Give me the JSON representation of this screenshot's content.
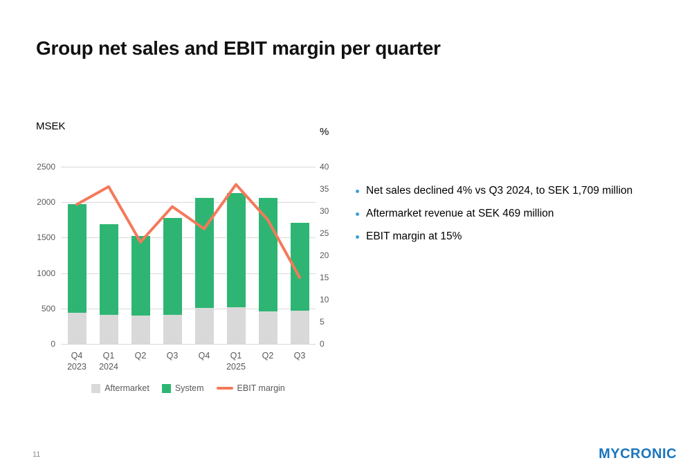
{
  "title": "Group net sales and EBIT margin per quarter",
  "bullets": [
    "Net sales declined 4% vs Q3 2024, to SEK 1,709 million",
    "Aftermarket revenue at SEK 469 million",
    "EBIT margin at 15%"
  ],
  "bullet_color": "#3f9fd8",
  "page_number": "11",
  "logo_text": "MYCRONIC",
  "logo_color": "#1b75bc",
  "chart_data": {
    "type": "bar",
    "subtype": "stacked-bar-with-line",
    "title": "Group net sales and EBIT margin per quarter",
    "categories": [
      "Q4 2023",
      "Q1 2024",
      "Q2 2024",
      "Q3 2024",
      "Q4 2024",
      "Q1 2025",
      "Q2 2025",
      "Q3 2025"
    ],
    "category_labels": [
      {
        "q": "Q4",
        "year": "2023"
      },
      {
        "q": "Q1",
        "year": "2024"
      },
      {
        "q": "Q2",
        "year": ""
      },
      {
        "q": "Q3",
        "year": ""
      },
      {
        "q": "Q4",
        "year": ""
      },
      {
        "q": "Q1",
        "year": "2025"
      },
      {
        "q": "Q2",
        "year": ""
      },
      {
        "q": "Q3",
        "year": ""
      }
    ],
    "series": [
      {
        "name": "Aftermarket",
        "type": "bar",
        "axis": "left",
        "color": "#d9d9d9",
        "values": [
          440,
          410,
          400,
          410,
          505,
          520,
          455,
          469
        ]
      },
      {
        "name": "System",
        "type": "bar",
        "axis": "left",
        "color": "#2eb573",
        "values": [
          1535,
          1280,
          1120,
          1370,
          1555,
          1610,
          1610,
          1240
        ]
      },
      {
        "name": "EBIT margin",
        "type": "line",
        "axis": "right",
        "color": "#f4795b",
        "values": [
          31.5,
          35.5,
          23,
          31,
          26,
          36,
          28,
          15
        ]
      }
    ],
    "totals_msek": [
      1975,
      1690,
      1520,
      1780,
      2060,
      2130,
      2065,
      1709
    ],
    "left_axis": {
      "unit": "MSEK",
      "min": 0,
      "max": 2500,
      "ticks": [
        0,
        500,
        1000,
        1500,
        2000,
        2500
      ]
    },
    "right_axis": {
      "unit": "%",
      "min": 0,
      "max": 40,
      "ticks": [
        0,
        5,
        10,
        15,
        20,
        25,
        30,
        35,
        40
      ]
    },
    "grid": true,
    "legend_position": "bottom"
  }
}
